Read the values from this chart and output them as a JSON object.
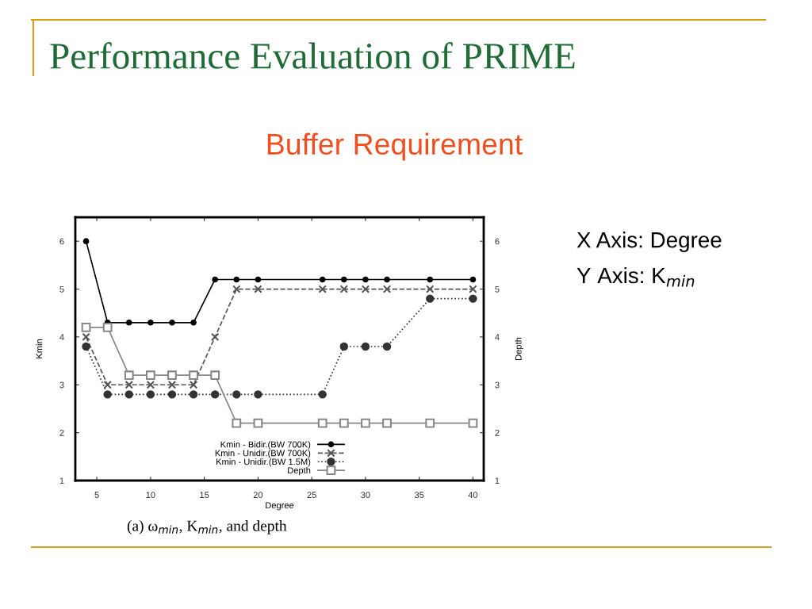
{
  "chart_data": {
    "type": "line",
    "title": "Performance Evaluation of PRIME",
    "subtitle": "Buffer Requirement",
    "xlabel": "Degree",
    "ylabel": "Kmin",
    "y2label": "Depth",
    "annotations": [
      "X Axis: Degree",
      "Y Axis: K$_{min}$",
      "(a) ω$_{min}$, K$_{min}$, and depth"
    ],
    "x": [
      4,
      6,
      8,
      10,
      12,
      14,
      16,
      18,
      20,
      26,
      28,
      30,
      32,
      36,
      40
    ],
    "series": [
      {
        "name": "Kmin - Bidir.(BW 700K)",
        "color": "#000000",
        "marker": "circle",
        "line_style": "solid",
        "values": [
          6,
          4.3,
          4.3,
          4.3,
          4.3,
          4.3,
          5.2,
          5.2,
          5.2,
          5.2,
          5.2,
          5.2,
          5.2,
          5.2,
          5.2
        ]
      },
      {
        "name": "Kmin - Unidir.(BW 700K)",
        "color": "#555555",
        "marker": "cross",
        "line_style": "dashed",
        "values": [
          4,
          3,
          3,
          3,
          3,
          3,
          4,
          5,
          5,
          5,
          5,
          5,
          5,
          5,
          5
        ]
      },
      {
        "name": "Kmin - Unidir.(BW 1.5M)",
        "color": "#333333",
        "marker": "circle",
        "line_style": "dotted",
        "values": [
          3.8,
          2.8,
          2.8,
          2.8,
          2.8,
          2.8,
          2.8,
          2.8,
          2.8,
          2.8,
          3.8,
          3.8,
          3.8,
          4.8,
          4.8
        ]
      },
      {
        "name": "Depth",
        "color": "#888888",
        "marker": "square",
        "line_style": "solid",
        "values": [
          4.2,
          4.2,
          3.2,
          3.2,
          3.2,
          3.2,
          3.2,
          2.2,
          2.2,
          2.2,
          2.2,
          2.2,
          2.2,
          2.2,
          2.2
        ]
      }
    ],
    "xlim": [
      3,
      41
    ],
    "xticks": [
      5,
      10,
      15,
      20,
      25,
      30,
      35,
      40
    ],
    "ylim": [
      1,
      6.5
    ],
    "yticks": [
      1,
      2,
      3,
      4,
      5,
      6
    ],
    "y2lim": [
      1,
      6.5
    ],
    "y2ticks": [
      1,
      2,
      3,
      4,
      5,
      6
    ],
    "legend": "bottom",
    "grid": false
  }
}
